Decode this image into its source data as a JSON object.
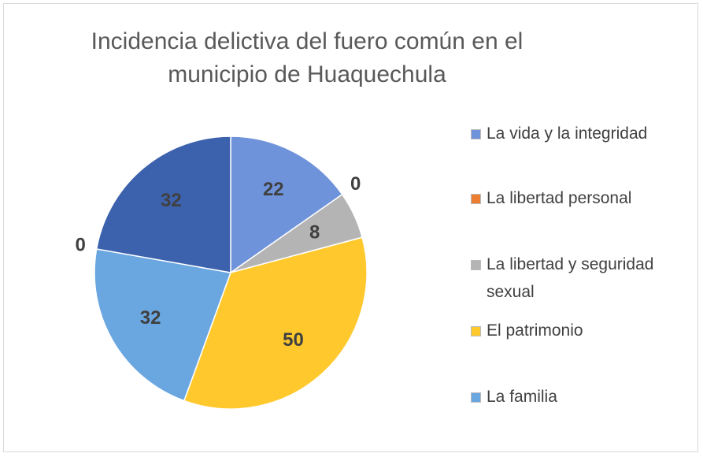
{
  "chart_data": {
    "type": "pie",
    "title": "Incidencia delictiva del fuero común en el municipio de Huaquechula",
    "categories": [
      "La vida y la integridad",
      "La libertad personal",
      "La libertad y seguridad sexual",
      "El patrimonio",
      "La familia",
      null,
      null
    ],
    "values": [
      22,
      0,
      8,
      50,
      32,
      0,
      32
    ],
    "colors": [
      "#6f93da",
      "#ed7d31",
      "#b4b4b4",
      "#ffc92e",
      "#6aa6e0",
      "#2f5597",
      "#3d62ad"
    ],
    "legend": "right"
  }
}
